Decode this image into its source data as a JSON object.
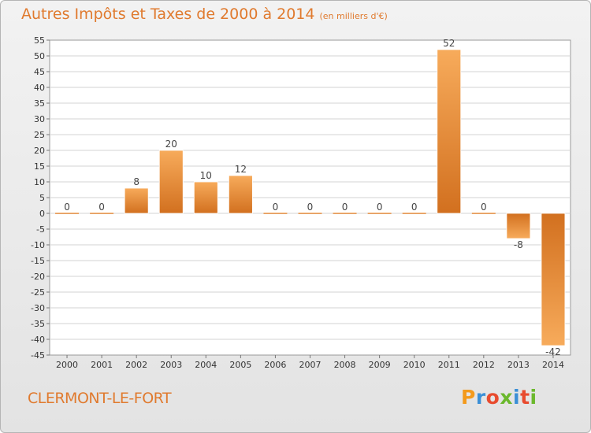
{
  "header": {
    "title": "Autres Impôts et Taxes de 2000 à 2014",
    "unit": "(en milliers d'€)"
  },
  "footer": {
    "place": "CLERMONT-LE-FORT",
    "brand": "Proxiti",
    "brand_colors": [
      "#f39a1c",
      "#3a8fd6",
      "#e84b2e",
      "#6bb82d",
      "#3a8fd6",
      "#e84b2e",
      "#6bb82d"
    ]
  },
  "colors": {
    "bar_light": "#f7ab5b",
    "bar_dark": "#d2701f",
    "title": "#e07a2e",
    "plot_bg": "#ffffff",
    "grid": "#d3d3d3"
  },
  "chart_data": {
    "type": "bar",
    "title": "Autres Impôts et Taxes de 2000 à 2014",
    "ylabel": "",
    "xlabel": "",
    "ylim": [
      -45,
      55
    ],
    "ystep": 5,
    "grid": true,
    "categories": [
      "2000",
      "2001",
      "2002",
      "2003",
      "2004",
      "2005",
      "2006",
      "2007",
      "2008",
      "2009",
      "2010",
      "2011",
      "2012",
      "2013",
      "2014"
    ],
    "values": [
      0,
      0,
      8,
      20,
      10,
      12,
      0,
      0,
      0,
      0,
      0,
      52,
      0,
      -8,
      -42
    ],
    "labels": [
      "0",
      "0",
      "8",
      "20",
      "10",
      "12",
      "0",
      "0",
      "0",
      "0",
      "0",
      "52",
      "0",
      "-8",
      "-42"
    ]
  }
}
